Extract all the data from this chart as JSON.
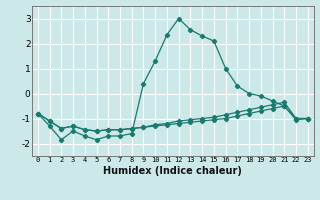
{
  "xlabel": "Humidex (Indice chaleur)",
  "bg_color": "#cce8e8",
  "grid_color": "#ffffff",
  "line_color": "#1a7a6e",
  "xlim": [
    -0.5,
    23.5
  ],
  "ylim": [
    -2.5,
    3.5
  ],
  "yticks": [
    -2,
    -1,
    0,
    1,
    2,
    3
  ],
  "xticks": [
    0,
    1,
    2,
    3,
    4,
    5,
    6,
    7,
    8,
    9,
    10,
    11,
    12,
    13,
    14,
    15,
    16,
    17,
    18,
    19,
    20,
    21,
    22,
    23
  ],
  "x": [
    0,
    1,
    2,
    3,
    4,
    5,
    6,
    7,
    8,
    9,
    10,
    11,
    12,
    13,
    14,
    15,
    16,
    17,
    18,
    19,
    20,
    21,
    22,
    23
  ],
  "line1": [
    -0.8,
    -1.3,
    -1.85,
    -1.5,
    -1.7,
    -1.85,
    -1.7,
    -1.7,
    -1.6,
    0.4,
    1.3,
    2.35,
    3.0,
    2.55,
    2.3,
    2.1,
    1.0,
    0.3,
    0.0,
    -0.1,
    -0.3,
    -0.5,
    -1.05,
    -1.0
  ],
  "line2": [
    -0.8,
    -1.1,
    -1.4,
    -1.3,
    -1.45,
    -1.5,
    -1.45,
    -1.45,
    -1.4,
    -1.35,
    -1.25,
    -1.2,
    -1.1,
    -1.05,
    -1.0,
    -0.95,
    -0.85,
    -0.75,
    -0.65,
    -0.55,
    -0.45,
    -0.35,
    -1.0,
    -1.0
  ],
  "line3": [
    -0.8,
    -1.1,
    -1.4,
    -1.3,
    -1.45,
    -1.5,
    -1.45,
    -1.45,
    -1.4,
    -1.35,
    -1.3,
    -1.25,
    -1.2,
    -1.15,
    -1.1,
    -1.05,
    -1.0,
    -0.9,
    -0.8,
    -0.7,
    -0.6,
    -0.5,
    -1.0,
    -1.0
  ]
}
